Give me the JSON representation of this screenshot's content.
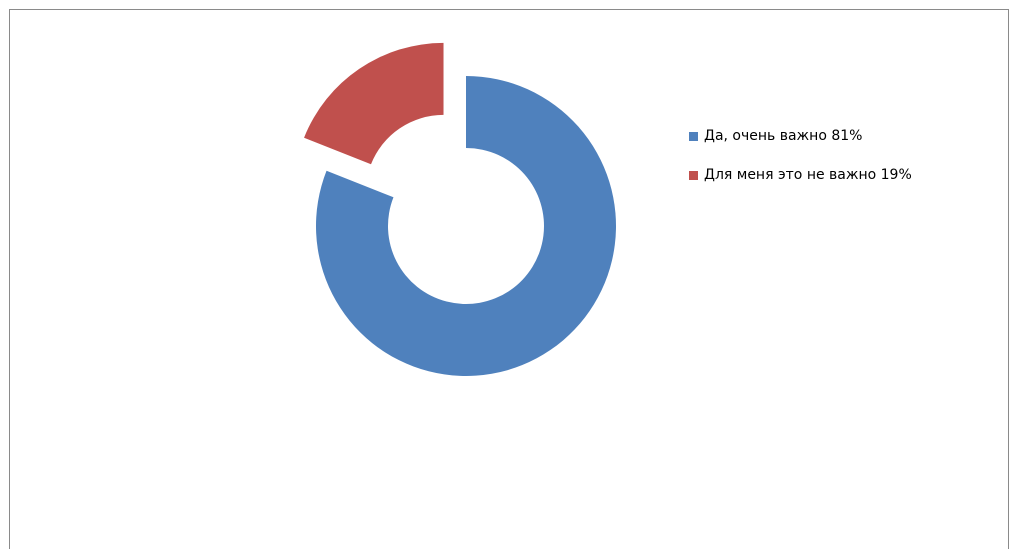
{
  "chart_data": {
    "type": "pie",
    "style": "donut",
    "exploded_slice": "Для меня это не важно",
    "slices": [
      {
        "label": "Да, очень важно 81%",
        "name": "Да, очень важно",
        "value": 81,
        "color": "#4f81bd"
      },
      {
        "label": "Для меня это не важно 19%",
        "name": "Для меня это не важно",
        "value": 19,
        "color": "#c0504d"
      }
    ],
    "legend_position": "right",
    "title": ""
  }
}
